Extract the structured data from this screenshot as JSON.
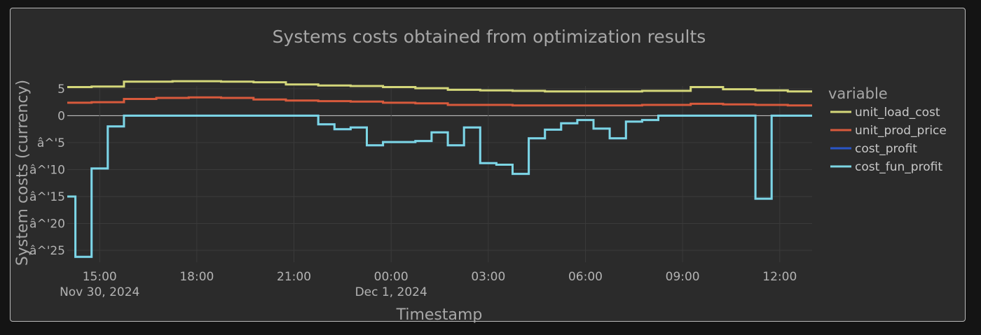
{
  "chart_data": {
    "type": "line",
    "title": "Systems costs obtained from optimization results",
    "xlabel": "Timestamp",
    "ylabel": "System costs (currency)",
    "legend_title": "variable",
    "legend_position": "right",
    "line_shape": "step",
    "grid": true,
    "ylim": [
      -27.2,
      5.5
    ],
    "x_start": "2024-11-30 14:00",
    "x_end": "2024-12-01 13:00",
    "yticks": [
      {
        "value": 5,
        "label": "5"
      },
      {
        "value": 0,
        "label": "0"
      },
      {
        "value": -5,
        "label": "â^'5"
      },
      {
        "value": -10,
        "label": "â^'10"
      },
      {
        "value": -15,
        "label": "â^'15"
      },
      {
        "value": -20,
        "label": "â^'20"
      },
      {
        "value": -25,
        "label": "â^'25"
      }
    ],
    "xticks": [
      {
        "time": "2024-11-30 15:00",
        "label": "15:00",
        "sublabel": "Nov 30, 2024"
      },
      {
        "time": "2024-11-30 18:00",
        "label": "18:00",
        "sublabel": ""
      },
      {
        "time": "2024-11-30 21:00",
        "label": "21:00",
        "sublabel": ""
      },
      {
        "time": "2024-12-01 00:00",
        "label": "00:00",
        "sublabel": "Dec 1, 2024"
      },
      {
        "time": "2024-12-01 03:00",
        "label": "03:00",
        "sublabel": ""
      },
      {
        "time": "2024-12-01 06:00",
        "label": "06:00",
        "sublabel": ""
      },
      {
        "time": "2024-12-01 09:00",
        "label": "09:00",
        "sublabel": ""
      },
      {
        "time": "2024-12-01 12:00",
        "label": "12:00",
        "sublabel": ""
      }
    ],
    "x": [
      "2024-11-30 14:00",
      "2024-11-30 14:30",
      "2024-11-30 15:00",
      "2024-11-30 15:30",
      "2024-11-30 16:00",
      "2024-11-30 16:30",
      "2024-11-30 17:00",
      "2024-11-30 17:30",
      "2024-11-30 18:00",
      "2024-11-30 18:30",
      "2024-11-30 19:00",
      "2024-11-30 19:30",
      "2024-11-30 20:00",
      "2024-11-30 20:30",
      "2024-11-30 21:00",
      "2024-11-30 21:30",
      "2024-11-30 22:00",
      "2024-11-30 22:30",
      "2024-11-30 23:00",
      "2024-11-30 23:30",
      "2024-12-01 00:00",
      "2024-12-01 00:30",
      "2024-12-01 01:00",
      "2024-12-01 01:30",
      "2024-12-01 02:00",
      "2024-12-01 02:30",
      "2024-12-01 03:00",
      "2024-12-01 03:30",
      "2024-12-01 04:00",
      "2024-12-01 04:30",
      "2024-12-01 05:00",
      "2024-12-01 05:30",
      "2024-12-01 06:00",
      "2024-12-01 06:30",
      "2024-12-01 07:00",
      "2024-12-01 07:30",
      "2024-12-01 08:00",
      "2024-12-01 08:30",
      "2024-12-01 09:00",
      "2024-12-01 09:30",
      "2024-12-01 10:00",
      "2024-12-01 10:30",
      "2024-12-01 11:00",
      "2024-12-01 11:30",
      "2024-12-01 12:00",
      "2024-12-01 12:30",
      "2024-12-01 13:00"
    ],
    "series": [
      {
        "name": "unit_load_cost",
        "color": "#d4d77a",
        "values": [
          5.3,
          5.3,
          5.4,
          5.4,
          6.3,
          6.3,
          6.3,
          6.4,
          6.4,
          6.4,
          6.3,
          6.3,
          6.2,
          6.2,
          5.8,
          5.8,
          5.6,
          5.6,
          5.5,
          5.5,
          5.3,
          5.3,
          5.1,
          5.1,
          4.8,
          4.8,
          4.7,
          4.7,
          4.6,
          4.6,
          4.5,
          4.5,
          4.5,
          4.5,
          4.5,
          4.5,
          4.6,
          4.6,
          4.6,
          5.3,
          5.3,
          4.9,
          4.9,
          4.7,
          4.7,
          4.5,
          4.5
        ]
      },
      {
        "name": "unit_prod_price",
        "color": "#d85a3c",
        "values": [
          2.4,
          2.4,
          2.5,
          2.5,
          3.1,
          3.1,
          3.3,
          3.3,
          3.4,
          3.4,
          3.3,
          3.3,
          3.0,
          3.0,
          2.8,
          2.8,
          2.7,
          2.7,
          2.6,
          2.6,
          2.4,
          2.4,
          2.3,
          2.3,
          2.0,
          2.0,
          2.0,
          2.0,
          1.9,
          1.9,
          1.9,
          1.9,
          1.9,
          1.9,
          1.9,
          1.9,
          2.0,
          2.0,
          2.0,
          2.2,
          2.2,
          2.1,
          2.1,
          2.0,
          2.0,
          1.9,
          1.9
        ]
      },
      {
        "name": "cost_profit",
        "color": "#2a55c7",
        "values": [
          -15,
          -26.2,
          -9.8,
          -2,
          0,
          0,
          0,
          0,
          0,
          0,
          0,
          0,
          0,
          0,
          0,
          0,
          -1.6,
          -2.5,
          -2.2,
          -5.5,
          -4.9,
          -4.9,
          -4.7,
          -3.1,
          -5.5,
          -2.2,
          -8.8,
          -9.1,
          -10.8,
          -4.2,
          -2.6,
          -1.4,
          -0.8,
          -2.4,
          -4.2,
          -1.1,
          -0.8,
          0,
          0,
          0,
          0,
          0,
          0,
          -15.4,
          0,
          0,
          0
        ]
      },
      {
        "name": "cost_fun_profit",
        "color": "#7dd6e3",
        "values": [
          -15,
          -26.2,
          -9.8,
          -2,
          0,
          0,
          0,
          0,
          0,
          0,
          0,
          0,
          0,
          0,
          0,
          0,
          -1.6,
          -2.5,
          -2.2,
          -5.5,
          -4.9,
          -4.9,
          -4.7,
          -3.1,
          -5.5,
          -2.2,
          -8.8,
          -9.1,
          -10.8,
          -4.2,
          -2.6,
          -1.4,
          -0.8,
          -2.4,
          -4.2,
          -1.1,
          -0.8,
          0,
          0,
          0,
          0,
          0,
          0,
          -15.4,
          0,
          0,
          0
        ]
      }
    ]
  }
}
